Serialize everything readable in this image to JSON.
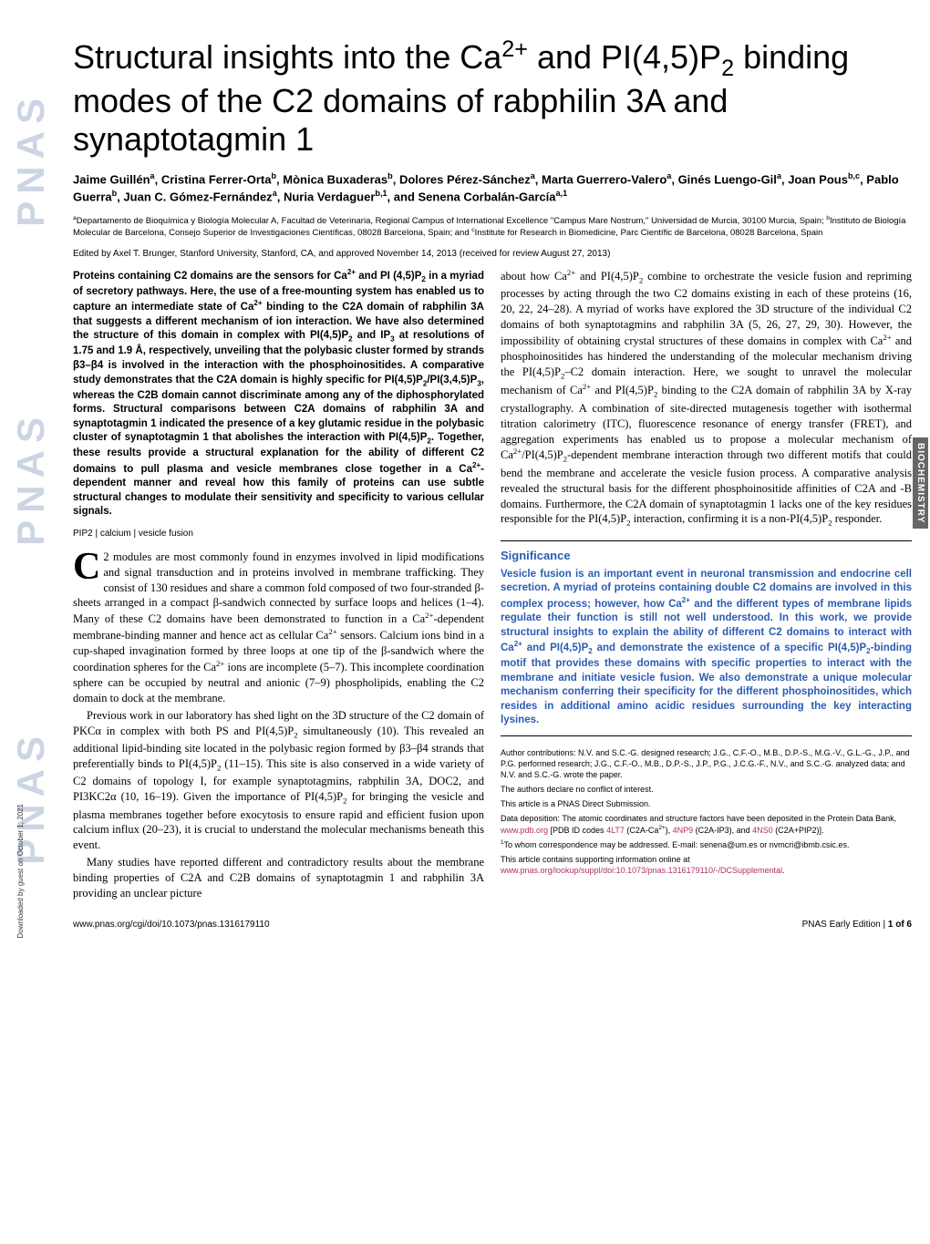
{
  "sidebar_text": "PNAS",
  "vertical_label": "BIOCHEMISTRY",
  "download_note": "Downloaded by guest on October 1, 2021",
  "title_html": "Structural insights into the Ca<sup>2+</sup> and PI(4,5)P<sub>2</sub> binding modes of the C2 domains of rabphilin 3A and synaptotagmin 1",
  "authors_html": "Jaime Guillén<sup>a</sup>, Cristina Ferrer-Orta<sup>b</sup>, Mònica Buxaderas<sup>b</sup>, Dolores Pérez-Sánchez<sup>a</sup>, Marta Guerrero-Valero<sup>a</sup>, Ginés Luengo-Gil<sup>a</sup>, Joan Pous<sup>b,c</sup>, Pablo Guerra<sup>b</sup>, Juan C. Gómez-Fernández<sup>a</sup>, Nuria Verdaguer<sup>b,1</sup>, and Senena Corbalán-García<sup>a,1</sup>",
  "affiliations_html": "<sup>a</sup>Departamento de Bioquímica y Biología Molecular A, Facultad de Veterinaria, Regional Campus of International Excellence \"Campus Mare Nostrum,\" Universidad de Murcia, 30100 Murcia, Spain; <sup>b</sup>Instituto de Biología Molecular de Barcelona, Consejo Superior de Investigaciones Científicas, 08028 Barcelona, Spain; and <sup>c</sup>Institute for Research in Biomedicine, Parc Científic de Barcelona, 08028 Barcelona, Spain",
  "edited_by": "Edited by Axel T. Brunger, Stanford University, Stanford, CA, and approved November 14, 2013 (received for review August 27, 2013)",
  "abstract_html": "Proteins containing C2 domains are the sensors for Ca<sup>2+</sup> and PI (4,5)P<sub>2</sub> in a myriad of secretory pathways. Here, the use of a free-mounting system has enabled us to capture an intermediate state of Ca<sup>2+</sup> binding to the C2A domain of rabphilin 3A that suggests a different mechanism of ion interaction. We have also determined the structure of this domain in complex with PI(4,5)P<sub>2</sub> and IP<sub>3</sub> at resolutions of 1.75 and 1.9 Å, respectively, unveiling that the polybasic cluster formed by strands β3–β4 is involved in the interaction with the phosphoinositides. A comparative study demonstrates that the C2A domain is highly specific for PI(4,5)P<sub>2</sub>/PI(3,4,5)P<sub>3</sub>, whereas the C2B domain cannot discriminate among any of the diphosphorylated forms. Structural comparisons between C2A domains of rabphilin 3A and synaptotagmin 1 indicated the presence of a key glutamic residue in the polybasic cluster of synaptotagmin 1 that abolishes the interaction with PI(4,5)P<sub>2</sub>. Together, these results provide a structural explanation for the ability of different C2 domains to pull plasma and vesicle membranes close together in a Ca<sup>2+</sup>-dependent manner and reveal how this family of proteins can use subtle structural changes to modulate their sensitivity and specificity to various cellular signals.",
  "keywords": "PIP2 | calcium | vesicle fusion",
  "body_p1_html": "2 modules are most commonly found in enzymes involved in lipid modifications and signal transduction and in proteins involved in membrane trafficking. They consist of 130 residues and share a common fold composed of two four-stranded β-sheets arranged in a compact β-sandwich connected by surface loops and helices (1–4). Many of these C2 domains have been demonstrated to function in a Ca<sup>2+</sup>-dependent membrane-binding manner and hence act as cellular Ca<sup>2+</sup> sensors. Calcium ions bind in a cup-shaped invagination formed by three loops at one tip of the β-sandwich where the coordination spheres for the Ca<sup>2+</sup> ions are incomplete (5–7). This incomplete coordination sphere can be occupied by neutral and anionic (7–9) phospholipids, enabling the C2 domain to dock at the membrane.",
  "body_p1_dropcap": "C",
  "body_p2_html": "Previous work in our laboratory has shed light on the 3D structure of the C2 domain of PKCα in complex with both PS and PI(4,5)P<sub>2</sub> simultaneously (10). This revealed an additional lipid-binding site located in the polybasic region formed by β3–β4 strands that preferentially binds to PI(4,5)P<sub>2</sub> (11–15). This site is also conserved in a wide variety of C2 domains of topology I, for example synaptotagmins, rabphilin 3A, DOC2, and PI3KC2α (10, 16–19). Given the importance of PI(4,5)P<sub>2</sub> for bringing the vesicle and plasma membranes together before exocytosis to ensure rapid and efficient fusion upon calcium influx (20–23), it is crucial to understand the molecular mechanisms beneath this event.",
  "body_p3_html": "Many studies have reported different and contradictory results about the membrane binding properties of C2A and C2B domains of synaptotagmin 1 and rabphilin 3A providing an unclear picture",
  "col2_p1_html": "about how Ca<sup>2+</sup> and PI(4,5)P<sub>2</sub> combine to orchestrate the vesicle fusion and repriming processes by acting through the two C2 domains existing in each of these proteins (16, 20, 22, 24–28). A myriad of works have explored the 3D structure of the individual C2 domains of both synaptotagmins and rabphilin 3A (5, 26, 27, 29, 30). However, the impossibility of obtaining crystal structures of these domains in complex with Ca<sup>2+</sup> and phosphoinositides has hindered the understanding of the molecular mechanism driving the PI(4,5)P<sub>2</sub>–C2 domain interaction. Here, we sought to unravel the molecular mechanism of Ca<sup>2+</sup> and PI(4,5)P<sub>2</sub> binding to the C2A domain of rabphilin 3A by X-ray crystallography. A combination of site-directed mutagenesis together with isothermal titration calorimetry (ITC), fluorescence resonance of energy transfer (FRET), and aggregation experiments has enabled us to propose a molecular mechanism of Ca<sup>2+</sup>/PI(4,5)P<sub>2</sub>-dependent membrane interaction through two different motifs that could bend the membrane and accelerate the vesicle fusion process. A comparative analysis revealed the structural basis for the different phosphoinositide affinities of C2A and -B domains. Furthermore, the C2A domain of synaptotagmin 1 lacks one of the key residues responsible for the PI(4,5)P<sub>2</sub> interaction, confirming it is a non-PI(4,5)P<sub>2</sub> responder.",
  "significance_title": "Significance",
  "significance_body_html": "Vesicle fusion is an important event in neuronal transmission and endocrine cell secretion. A myriad of proteins containing double C2 domains are involved in this complex process; however, how Ca<sup>2+</sup> and the different types of membrane lipids regulate their function is still not well understood. In this work, we provide structural insights to explain the ability of different C2 domains to interact with Ca<sup>2+</sup> and PI(4,5)P<sub>2</sub> and demonstrate the existence of a specific PI(4,5)P<sub>2</sub>-binding motif that provides these domains with specific properties to interact with the membrane and initiate vesicle fusion. We also demonstrate a unique molecular mechanism conferring their specificity for the different phosphoinositides, which resides in additional amino acidic residues surrounding the key interacting lysines.",
  "footnotes": {
    "contrib": "Author contributions: N.V. and S.C.-G. designed research; J.G., C.F.-O., M.B., D.P.-S., M.G.-V., G.L.-G., J.P., and P.G. performed research; J.G., C.F.-O., M.B., D.P.-S., J.P., P.G., J.C.G.-F., N.V., and S.C.-G. analyzed data; and N.V. and S.C.-G. wrote the paper.",
    "conflict": "The authors declare no conflict of interest.",
    "direct": "This article is a PNAS Direct Submission.",
    "data_html": "Data deposition: The atomic coordinates and structure factors have been deposited in the Protein Data Bank, <a>www.pdb.org</a> [PDB ID codes <a>4LT7</a> (C2A-Ca<sup>2+</sup>), <a>4NP9</a> (C2A-IP3), and <a>4NS0</a> (C2A+PIP2)].",
    "corresp_html": "<sup>1</sup>To whom correspondence may be addressed. E-mail: senena@um.es or nvmcri@ibmb.csic.es.",
    "suppl_html": "This article contains supporting information online at <a>www.pnas.org/lookup/suppl/doi:10.1073/pnas.1316179110/-/DCSupplemental</a>."
  },
  "footer_left": "www.pnas.org/cgi/doi/10.1073/pnas.1316179110",
  "footer_right_html": "PNAS Early Edition | <b>1 of 6</b>",
  "colors": {
    "pnas_blue": "#3b5998",
    "sig_blue": "#2b5cb3",
    "link_pink": "#b0306a",
    "label_bg": "#666666"
  }
}
